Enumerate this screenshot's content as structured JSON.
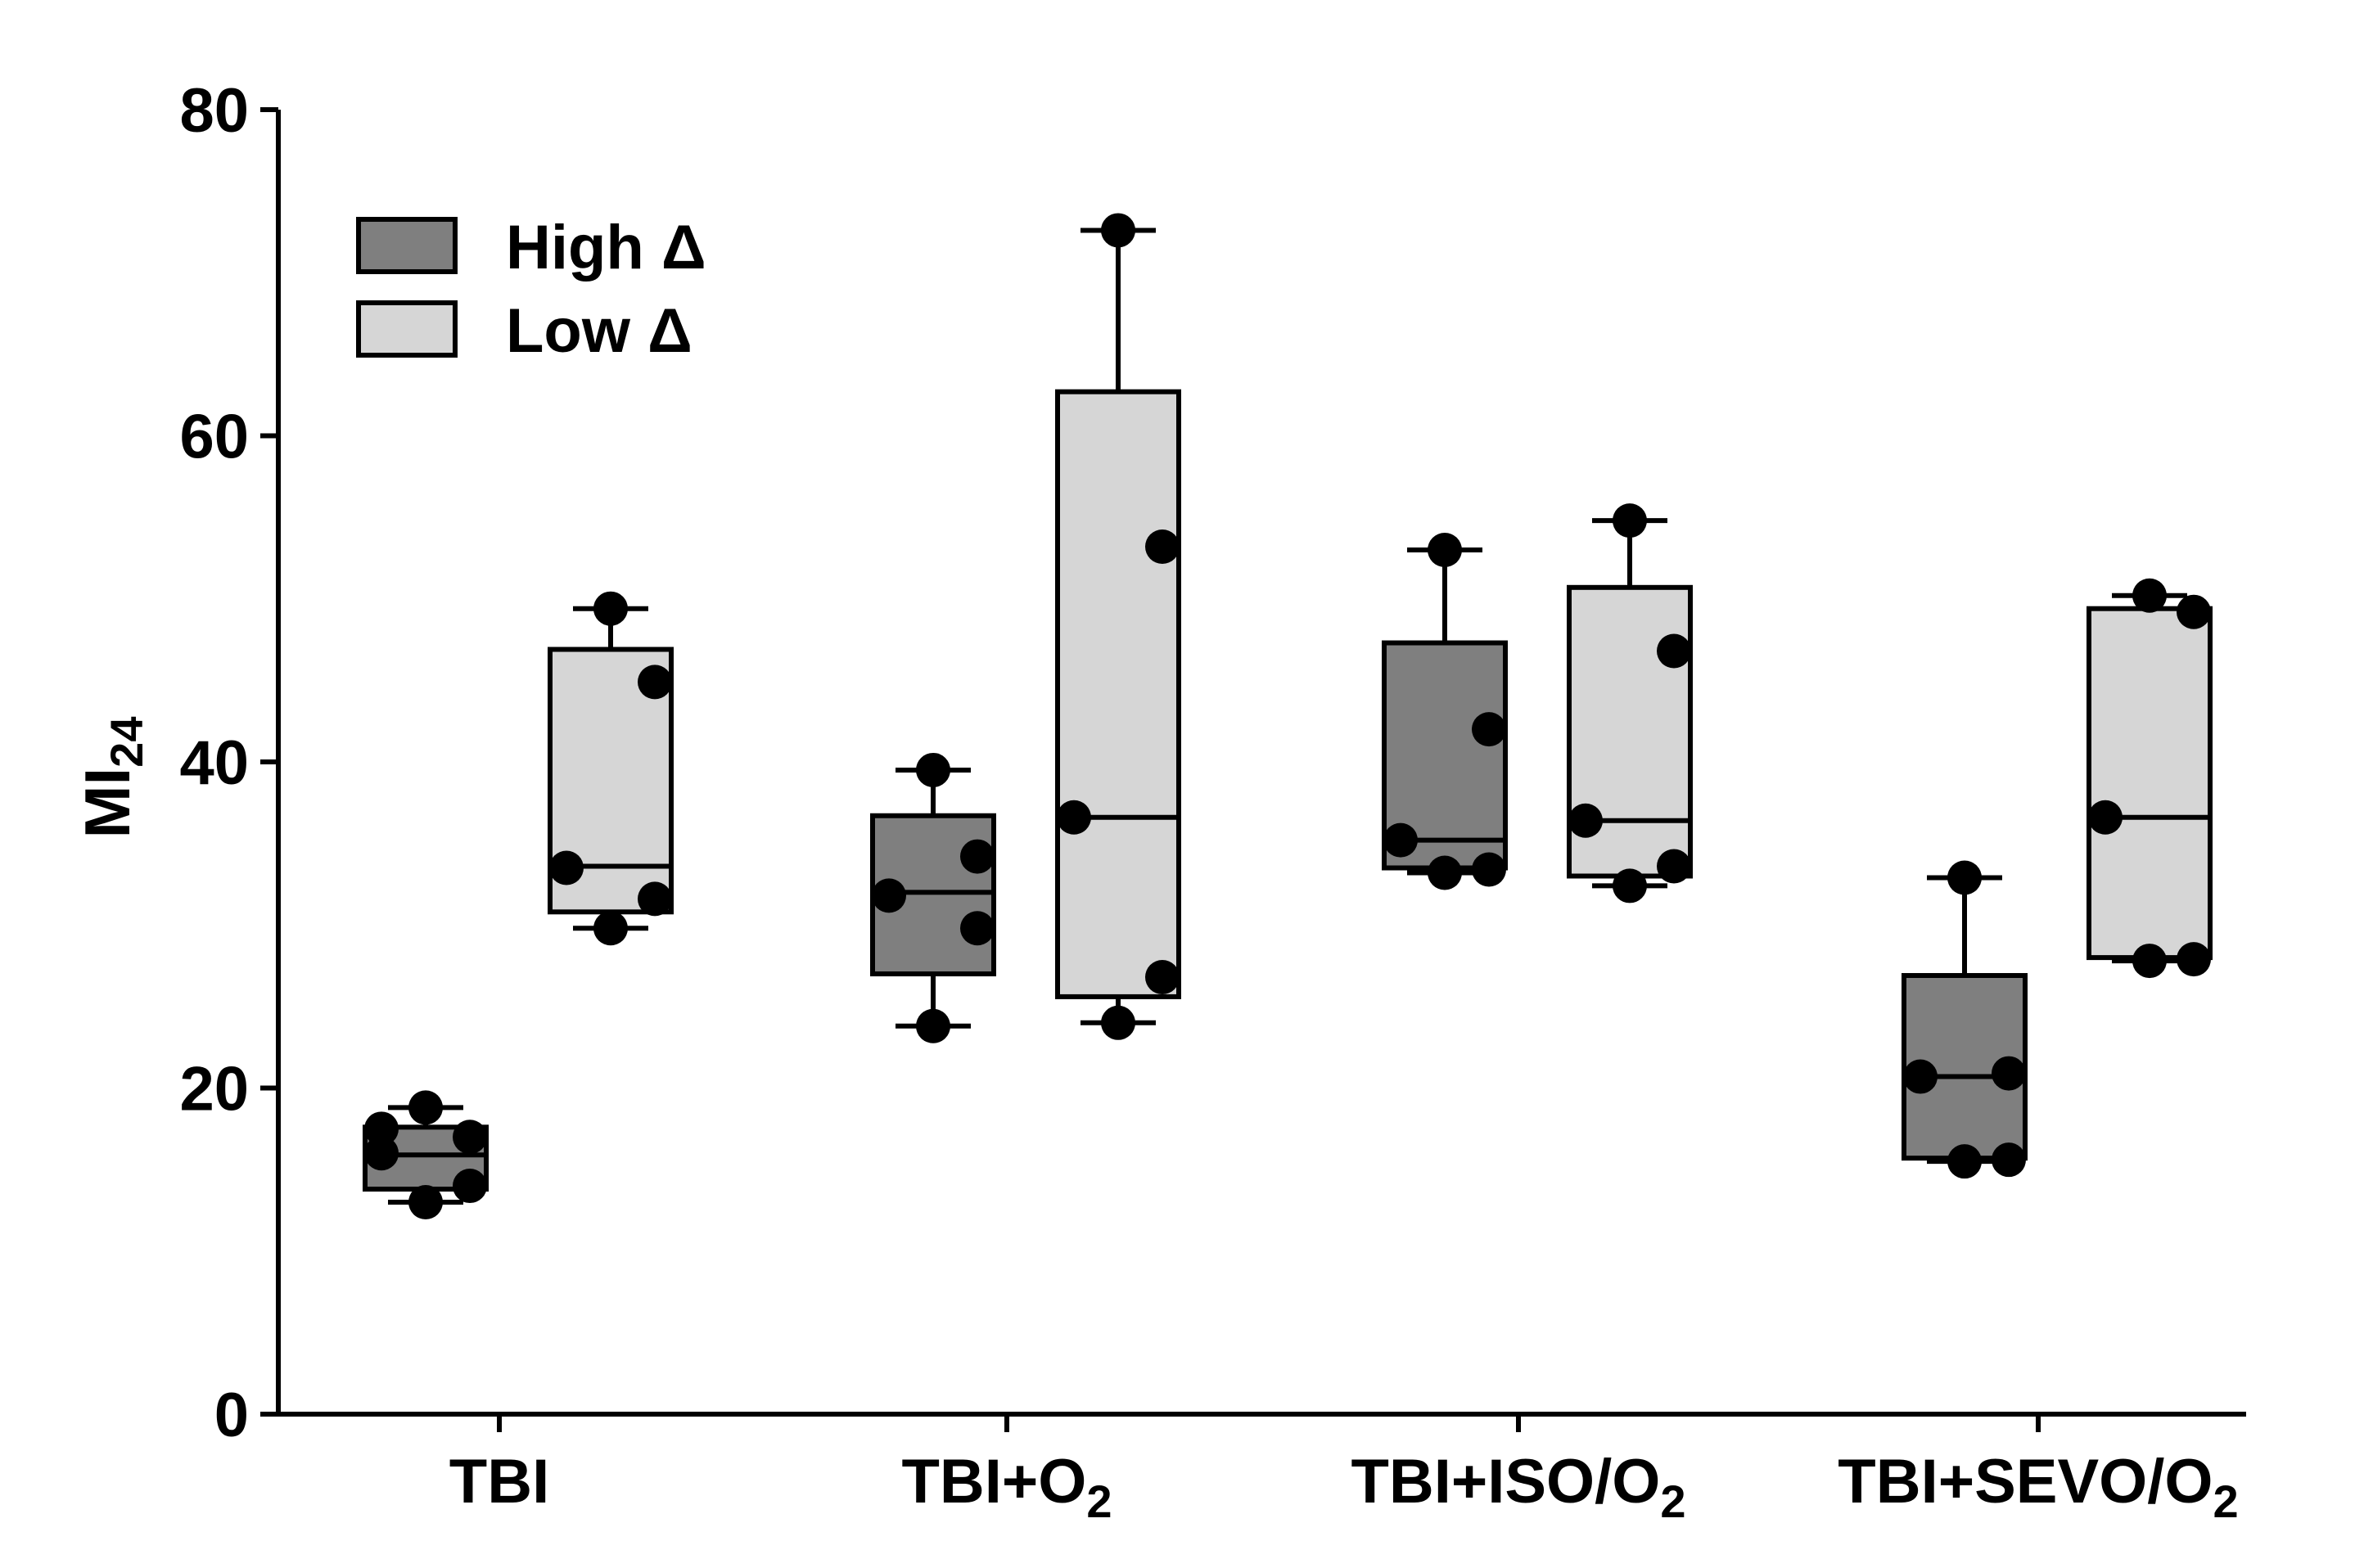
{
  "chart_data": {
    "type": "box",
    "ylabel": {
      "main": "MI",
      "sub": "24"
    },
    "ylim": [
      0,
      80
    ],
    "yticks": [
      0,
      20,
      40,
      60,
      80
    ],
    "categories": [
      {
        "main": "TBI",
        "sub": ""
      },
      {
        "main": "TBI+O",
        "sub": "2"
      },
      {
        "main": "TBI+ISO/O",
        "sub": "2"
      },
      {
        "main": "TBI+SEVO/O",
        "sub": "2"
      }
    ],
    "legend": {
      "position": "top-left",
      "items": [
        {
          "label": "High Δ",
          "color": "#7f7f7f"
        },
        {
          "label": "Low Δ",
          "color": "#d6d6d6"
        }
      ]
    },
    "grid": false,
    "series": [
      {
        "name": "High Δ",
        "color": "#7f7f7f",
        "boxes": [
          {
            "min": 13.0,
            "q1": 13.8,
            "median": 15.9,
            "q3": 17.6,
            "max": 18.8,
            "points": [
              13.0,
              14.0,
              16.0,
              17.0,
              17.5,
              18.8
            ]
          },
          {
            "min": 23.8,
            "q1": 27.0,
            "median": 32.0,
            "q3": 36.7,
            "max": 39.5,
            "points": [
              23.8,
              29.8,
              31.8,
              34.2,
              39.5
            ]
          },
          {
            "min": 33.2,
            "q1": 33.5,
            "median": 35.2,
            "q3": 47.3,
            "max": 53.0,
            "points": [
              33.2,
              33.4,
              35.2,
              42.0,
              53.0
            ]
          },
          {
            "min": 15.5,
            "q1": 15.7,
            "median": 20.7,
            "q3": 26.9,
            "max": 32.9,
            "points": [
              15.5,
              15.6,
              20.7,
              20.9,
              32.9
            ]
          }
        ]
      },
      {
        "name": "Low Δ",
        "color": "#d6d6d6",
        "boxes": [
          {
            "min": 29.8,
            "q1": 30.8,
            "median": 33.6,
            "q3": 46.9,
            "max": 49.4,
            "points": [
              29.8,
              31.6,
              33.5,
              44.9,
              49.4
            ]
          },
          {
            "min": 24.0,
            "q1": 25.6,
            "median": 36.6,
            "q3": 62.7,
            "max": 72.6,
            "points": [
              24.0,
              26.8,
              36.6,
              53.2,
              72.6
            ]
          },
          {
            "min": 32.4,
            "q1": 33.0,
            "median": 36.4,
            "q3": 50.7,
            "max": 54.8,
            "points": [
              32.4,
              33.6,
              36.4,
              46.8,
              54.8
            ]
          },
          {
            "min": 27.8,
            "q1": 28.0,
            "median": 36.6,
            "q3": 49.4,
            "max": 50.2,
            "points": [
              27.8,
              27.9,
              36.6,
              49.2,
              50.2
            ]
          }
        ]
      }
    ]
  }
}
